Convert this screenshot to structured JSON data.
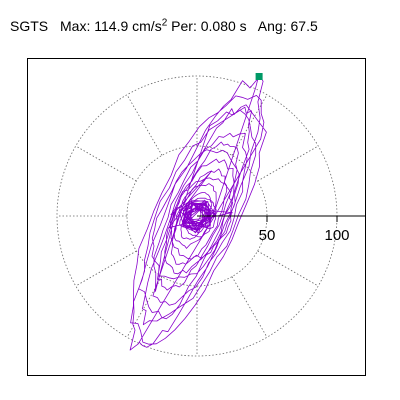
{
  "header": {
    "station": "SGTS",
    "max_label": "Max:",
    "max_value": "114.9",
    "max_unit": "cm/s",
    "max_unit_exp": "2",
    "per_label": "Per:",
    "per_value": "0.080",
    "per_unit": "s",
    "ang_label": "Ang:",
    "ang_value": "67.5"
  },
  "chart_data": {
    "type": "line",
    "title": "SGTS  Max: 114.9 cm/s2  Per: 0.080 s  Ang: 67.5",
    "xlabel": "",
    "ylabel": "",
    "radial_ticks": [
      50,
      100
    ],
    "radial_tick_labels": [
      "50",
      "100"
    ],
    "ring_radii": [
      50,
      100
    ],
    "spoke_angles_deg": [
      0,
      30,
      60,
      90,
      120,
      150,
      180,
      210,
      240,
      270,
      300,
      330
    ],
    "xlim": [
      -50,
      60
    ],
    "ylim": [
      -58,
      56
    ],
    "grid": true,
    "max_point": {
      "x": 44,
      "y": 100
    },
    "max_marker_color": "#009966",
    "trace_color": "#8800cc",
    "grid_color": "#666666"
  }
}
